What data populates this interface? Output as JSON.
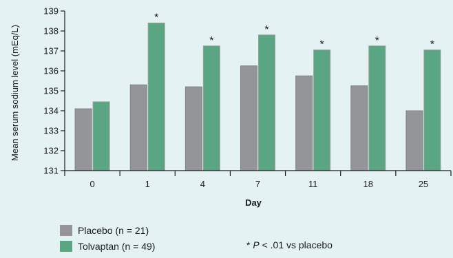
{
  "chart_data": {
    "type": "bar",
    "xlabel": "Day",
    "ylabel": "Mean serum sodium level (mEq/L)",
    "ylim": [
      131,
      139
    ],
    "yticks": [
      131,
      132,
      133,
      134,
      135,
      136,
      137,
      138,
      139
    ],
    "categories": [
      "0",
      "1",
      "4",
      "7",
      "11",
      "18",
      "25"
    ],
    "series": [
      {
        "name": "Placebo (n = 21)",
        "color": "#939598",
        "values": [
          134.1,
          135.3,
          135.2,
          136.25,
          135.75,
          135.25,
          134.0
        ]
      },
      {
        "name": "Tolvaptan (n = 49)",
        "color": "#5aa582",
        "values": [
          134.45,
          138.4,
          137.25,
          137.8,
          137.05,
          137.25,
          137.05
        ]
      }
    ],
    "significance_marker": "*",
    "significant": [
      false,
      true,
      true,
      true,
      true,
      true,
      true
    ],
    "grid": false,
    "legend_position": "bottom-left"
  },
  "legend": {
    "placebo": "Placebo (n = 21)",
    "tolvaptan": "Tolvaptan (n = 49)"
  },
  "footnote": {
    "star": "*",
    "p": "P",
    "rest": "< .01 vs placebo"
  }
}
